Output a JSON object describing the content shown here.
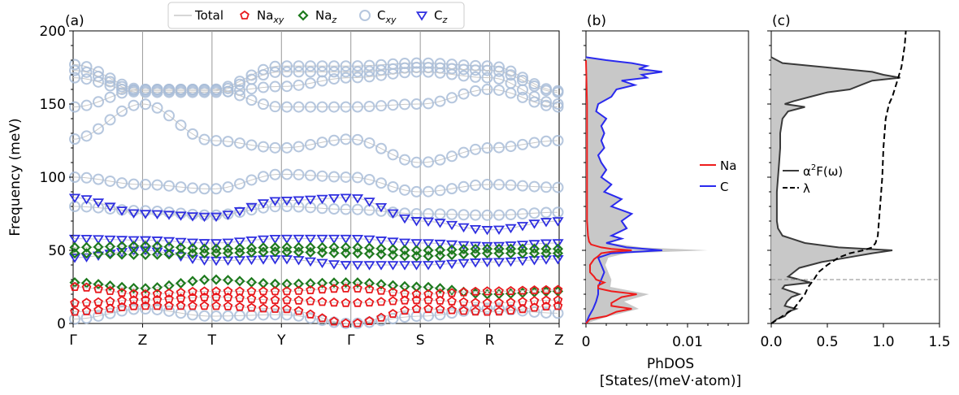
{
  "colors": {
    "total": "#c8c8c8",
    "na_xy": "#e8191d",
    "na_z": "#1e7a1e",
    "c_xy": "#a9bdd8",
    "c_z": "#2f2fe0",
    "na_dos": "#ee1c1c",
    "c_dos": "#2a2aee",
    "a2f": "#3a3a3a",
    "fill": "#c8c8c8"
  },
  "chart_data": [
    {
      "panel": "(a)",
      "type": "scatter",
      "ylabel": "Frequency (meV)",
      "ylim": [
        0,
        200
      ],
      "yticks": [
        "0",
        "50",
        "100",
        "150",
        "200"
      ],
      "xticks": [
        "Γ",
        "Z",
        "T",
        "Y",
        "Γ",
        "S",
        "R",
        "Z"
      ],
      "legend": {
        "placement": "top",
        "entries": [
          {
            "key": "total",
            "label": "Total",
            "sub": ""
          },
          {
            "key": "na_xy",
            "label": "Na",
            "sub": "xy"
          },
          {
            "key": "na_z",
            "label": "Na",
            "sub": "z"
          },
          {
            "key": "c_xy",
            "label": "C",
            "sub": "xy"
          },
          {
            "key": "c_z",
            "label": "C",
            "sub": "z"
          }
        ]
      },
      "series": [
        {
          "key": "c_xy",
          "name": "C_xy",
          "x": [
            0,
            1,
            2,
            3,
            4,
            5,
            6,
            7
          ],
          "y": [
            177,
            160,
            160,
            176,
            176,
            178,
            176,
            159
          ]
        },
        {
          "key": "c_xy",
          "name": "C_xy",
          "x": [
            0,
            1,
            2,
            3,
            4,
            5,
            6,
            7
          ],
          "y": [
            173,
            159,
            159,
            172,
            172,
            175,
            173,
            158
          ]
        },
        {
          "key": "c_xy",
          "name": "C_xy",
          "x": [
            0,
            1,
            2,
            3,
            4,
            5,
            6,
            7
          ],
          "y": [
            168,
            158,
            158,
            162,
            168,
            172,
            168,
            150
          ]
        },
        {
          "key": "c_xy",
          "name": "C_xy",
          "x": [
            0,
            1,
            2,
            3,
            4,
            5,
            6,
            7
          ],
          "y": [
            148,
            160,
            160,
            148,
            148,
            150,
            160,
            148
          ]
        },
        {
          "key": "c_xy",
          "name": "C_xy",
          "x": [
            0,
            1,
            2,
            3,
            4,
            5,
            6,
            7
          ],
          "y": [
            126,
            150,
            125,
            120,
            126,
            110,
            120,
            125
          ]
        },
        {
          "key": "c_xy",
          "name": "C_xy",
          "x": [
            0,
            1,
            2,
            3,
            4,
            5,
            6,
            7
          ],
          "y": [
            100,
            95,
            92,
            102,
            100,
            90,
            95,
            93
          ]
        },
        {
          "key": "c_xy",
          "name": "C_xy",
          "x": [
            0,
            1,
            2,
            3,
            4,
            5,
            6,
            7
          ],
          "y": [
            80,
            77,
            74,
            80,
            78,
            75,
            74,
            76
          ]
        },
        {
          "key": "c_z",
          "name": "C_z",
          "x": [
            0,
            1,
            2,
            3,
            4,
            5,
            6,
            7
          ],
          "y": [
            86,
            75,
            73,
            84,
            86,
            70,
            64,
            70
          ]
        },
        {
          "key": "c_z",
          "name": "C_z",
          "x": [
            0,
            1,
            2,
            3,
            4,
            5,
            6,
            7
          ],
          "y": [
            58,
            57,
            55,
            58,
            58,
            55,
            53,
            55
          ]
        },
        {
          "key": "c_z",
          "name": "C_z",
          "x": [
            0,
            1,
            2,
            3,
            4,
            5,
            6,
            7
          ],
          "y": [
            45,
            50,
            43,
            44,
            40,
            40,
            42,
            44
          ]
        },
        {
          "key": "na_z",
          "name": "Na_z",
          "x": [
            0,
            1,
            2,
            3,
            4,
            5,
            6,
            7
          ],
          "y": [
            52,
            53,
            51,
            52,
            52,
            50,
            51,
            51
          ]
        },
        {
          "key": "na_z",
          "name": "Na_z",
          "x": [
            0,
            1,
            2,
            3,
            4,
            5,
            6,
            7
          ],
          "y": [
            48,
            47,
            48,
            49,
            48,
            46,
            48,
            48
          ]
        },
        {
          "key": "na_z",
          "name": "Na_z",
          "x": [
            0,
            1,
            2,
            3,
            4,
            5,
            6,
            7
          ],
          "y": [
            28,
            24,
            30,
            27,
            28,
            25,
            20,
            22
          ]
        },
        {
          "key": "na_xy",
          "name": "Na_xy",
          "x": [
            0,
            1,
            2,
            3,
            4,
            5,
            6,
            7
          ],
          "y": [
            25,
            20,
            22,
            22,
            24,
            20,
            22,
            23
          ]
        },
        {
          "key": "na_xy",
          "name": "Na_xy",
          "x": [
            0,
            1,
            2,
            3,
            4,
            5,
            6,
            7
          ],
          "y": [
            14,
            16,
            18,
            16,
            14,
            16,
            14,
            16
          ]
        },
        {
          "key": "na_xy",
          "name": "Na_xy",
          "x": [
            0,
            1,
            2,
            3,
            4,
            5,
            6,
            7
          ],
          "y": [
            8,
            12,
            12,
            10,
            0,
            10,
            8,
            12
          ]
        },
        {
          "key": "c_xy",
          "name": "C_xy",
          "x": [
            0,
            1,
            2,
            3,
            4,
            5,
            6,
            7
          ],
          "y": [
            3,
            10,
            5,
            6,
            0,
            5,
            10,
            7
          ]
        }
      ]
    },
    {
      "panel": "(b)",
      "type": "line",
      "xlabel": "PhDOS\n[States/(meV·atom)]",
      "xlabel_lines": [
        "PhDOS",
        "[States/(meV·atom)]"
      ],
      "xticks": [
        "0",
        "0.01"
      ],
      "xlim": [
        0,
        0.016
      ],
      "legend": {
        "placement": "center-right",
        "entries": [
          {
            "key": "na_dos",
            "label": "Na"
          },
          {
            "key": "c_dos",
            "label": "C"
          }
        ]
      },
      "series": [
        {
          "key": "na_dos",
          "name": "Na",
          "freq": [
            0,
            3,
            5,
            8,
            10,
            12,
            14,
            16,
            18,
            20,
            22,
            24,
            26,
            28,
            30,
            32,
            35,
            40,
            44,
            46,
            48,
            49,
            50,
            51,
            52,
            54,
            56,
            60,
            70,
            100,
            150,
            180
          ],
          "dos": [
            0,
            0.0004,
            0.002,
            0.003,
            0.0045,
            0.0025,
            0.0025,
            0.003,
            0.0035,
            0.005,
            0.0025,
            0.0012,
            0.0012,
            0.0018,
            0.001,
            0.0008,
            0.0004,
            0.0004,
            0.0008,
            0.0012,
            0.0015,
            0.0025,
            0.0045,
            0.0025,
            0.0015,
            0.0005,
            0.0003,
            0.0002,
            0.0001,
            0.0001,
            0.0001,
            0
          ]
        },
        {
          "key": "c_dos",
          "name": "C",
          "freq": [
            0,
            5,
            10,
            15,
            20,
            25,
            30,
            35,
            40,
            45,
            48,
            50,
            52,
            55,
            58,
            60,
            65,
            70,
            75,
            80,
            85,
            90,
            95,
            100,
            105,
            110,
            115,
            120,
            125,
            130,
            135,
            140,
            145,
            150,
            155,
            160,
            163,
            166,
            168,
            170,
            172,
            174,
            176,
            178,
            180,
            182
          ],
          "dos": [
            0,
            0.0003,
            0.0007,
            0.001,
            0.0012,
            0.0012,
            0.0015,
            0.0018,
            0.0015,
            0.0012,
            0.0025,
            0.0075,
            0.004,
            0.002,
            0.0035,
            0.0025,
            0.004,
            0.0035,
            0.0045,
            0.0025,
            0.0035,
            0.0018,
            0.0025,
            0.0015,
            0.002,
            0.0015,
            0.0012,
            0.0018,
            0.0015,
            0.0018,
            0.0015,
            0.002,
            0.001,
            0.0012,
            0.0025,
            0.003,
            0.0048,
            0.0035,
            0.006,
            0.0055,
            0.0075,
            0.0052,
            0.006,
            0.0045,
            0.002,
            0.0
          ]
        }
      ]
    },
    {
      "panel": "(c)",
      "type": "line",
      "xticks": [
        "0.0",
        "0.5",
        "1.0",
        "1.5"
      ],
      "xlim": [
        0,
        1.5
      ],
      "ref_line_freq": 30,
      "legend": {
        "placement": "center-left",
        "entries": [
          {
            "key": "a2f",
            "label": "α",
            "sup": "2",
            "suffix": "F(ω)"
          },
          {
            "key": "lambda",
            "label": "λ"
          }
        ]
      },
      "series": [
        {
          "key": "a2f",
          "name": "α²F(ω)",
          "freq": [
            0,
            3,
            5,
            8,
            10,
            12,
            15,
            18,
            20,
            24,
            26,
            28,
            30,
            32,
            35,
            38,
            40,
            42,
            44,
            46,
            48,
            50,
            52,
            55,
            58,
            60,
            65,
            70,
            80,
            90,
            100,
            110,
            120,
            130,
            140,
            145,
            148,
            150,
            152,
            155,
            158,
            160,
            163,
            166,
            168,
            170,
            172,
            175,
            178,
            182
          ],
          "val": [
            0,
            0.05,
            0.12,
            0.15,
            0.22,
            0.12,
            0.14,
            0.18,
            0.25,
            0.1,
            0.12,
            0.35,
            0.25,
            0.15,
            0.2,
            0.25,
            0.35,
            0.45,
            0.6,
            0.75,
            0.9,
            1.08,
            0.6,
            0.3,
            0.18,
            0.1,
            0.06,
            0.05,
            0.05,
            0.05,
            0.06,
            0.07,
            0.08,
            0.08,
            0.1,
            0.15,
            0.3,
            0.12,
            0.2,
            0.35,
            0.5,
            0.7,
            0.8,
            0.9,
            1.15,
            1.0,
            0.9,
            0.5,
            0.1,
            0.0
          ]
        },
        {
          "key": "lambda",
          "name": "λ",
          "freq": [
            0,
            5,
            10,
            15,
            20,
            25,
            30,
            35,
            40,
            45,
            48,
            50,
            52,
            55,
            60,
            70,
            80,
            100,
            120,
            140,
            150,
            155,
            160,
            165,
            170,
            175,
            180,
            190,
            200
          ],
          "val": [
            0,
            0.1,
            0.2,
            0.25,
            0.3,
            0.33,
            0.38,
            0.42,
            0.5,
            0.6,
            0.7,
            0.82,
            0.9,
            0.93,
            0.95,
            0.96,
            0.97,
            0.99,
            1.0,
            1.02,
            1.05,
            1.08,
            1.1,
            1.12,
            1.14,
            1.16,
            1.17,
            1.19,
            1.2
          ]
        }
      ]
    }
  ]
}
